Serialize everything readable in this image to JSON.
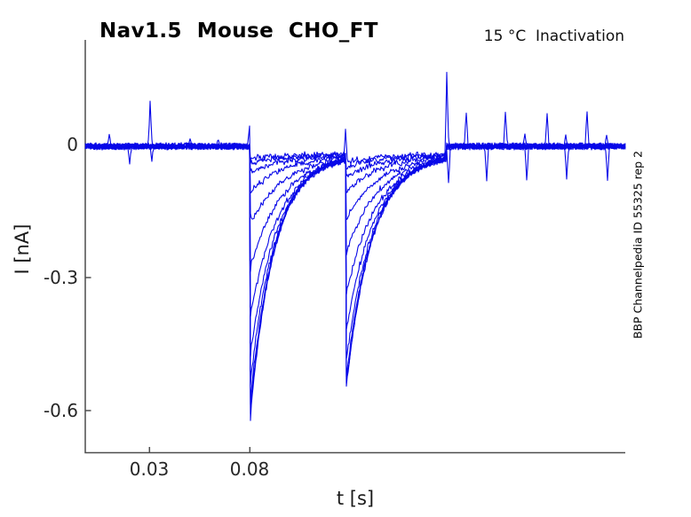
{
  "figure": {
    "title": "Nav1.5  Mouse  CHO_FT",
    "annotation": "15 °C  Inactivation",
    "watermark": "BBP Channelpedia ID 55325 rep 2"
  },
  "chart_data": {
    "type": "line",
    "title": "Nav1.5 Mouse CHO_FT",
    "annotation": "15 °C Inactivation",
    "watermark": "BBP Channelpedia ID 55325 rep 2",
    "xlabel": "t [s]",
    "ylabel": "I [nA]",
    "xlim": [
      -0.002,
      0.267
    ],
    "ylim": [
      -0.696,
      0.236
    ],
    "xticks": [
      0.03,
      0.08
    ],
    "xtick_labels": [
      "0.03",
      "0.08"
    ],
    "yticks": [
      0,
      -0.3,
      -0.6
    ],
    "ytick_labels": [
      "0",
      "-0.3",
      "-0.6"
    ],
    "grid": false,
    "legend": null,
    "trace_color": "#0808E8",
    "axis_color": "#4d4d4d",
    "n_traces": 12,
    "noise_nA": 0.0085,
    "holding_offset_nA": -0.004,
    "protocol": {
      "name": "Inactivation",
      "temperature_C": 15,
      "pulse1_onset_s": 0.08,
      "pulse2_onset_s": 0.128,
      "pulse_end_s": 0.178,
      "interpulse_baseline_shift_nA": -0.018,
      "recovery_tau_fast_s": 0.012,
      "recovery_tau_slow_s": 0.019,
      "pulse1_peak_amplitudes_nA": [
        -0.6,
        -0.585,
        -0.565,
        -0.525,
        -0.46,
        -0.37,
        -0.26,
        -0.16,
        -0.085,
        -0.042,
        -0.02,
        -0.009
      ],
      "pulse2_peak_amplitudes_nA": [
        -0.018,
        -0.03,
        -0.05,
        -0.085,
        -0.145,
        -0.22,
        -0.315,
        -0.4,
        -0.465,
        -0.505,
        -0.522,
        -0.528
      ]
    },
    "artifact_spikes": [
      {
        "t_s": 0.01,
        "amp_nA": 0.027
      },
      {
        "t_s": 0.0203,
        "amp_nA": -0.04
      },
      {
        "t_s": 0.0304,
        "amp_nA": 0.102
      },
      {
        "t_s": 0.0312,
        "amp_nA": -0.034
      },
      {
        "t_s": 0.05,
        "amp_nA": 0.017
      },
      {
        "t_s": 0.0645,
        "amp_nA": 0.014
      },
      {
        "t_s": 0.0797,
        "amp_nA": 0.046
      },
      {
        "t_s": 0.1277,
        "amp_nA": 0.068
      },
      {
        "t_s": 0.1779,
        "amp_nA": 0.167
      },
      {
        "t_s": 0.1788,
        "amp_nA": -0.082
      },
      {
        "t_s": 0.188,
        "amp_nA": 0.075
      },
      {
        "t_s": 0.198,
        "amp_nA": -0.078
      },
      {
        "t_s": 0.2075,
        "amp_nA": 0.077
      },
      {
        "t_s": 0.2172,
        "amp_nA": 0.028
      },
      {
        "t_s": 0.218,
        "amp_nA": -0.076
      },
      {
        "t_s": 0.228,
        "amp_nA": 0.074
      },
      {
        "t_s": 0.2372,
        "amp_nA": 0.026
      },
      {
        "t_s": 0.238,
        "amp_nA": -0.074
      },
      {
        "t_s": 0.248,
        "amp_nA": 0.078
      },
      {
        "t_s": 0.2577,
        "amp_nA": 0.025
      },
      {
        "t_s": 0.258,
        "amp_nA": -0.077
      }
    ]
  }
}
